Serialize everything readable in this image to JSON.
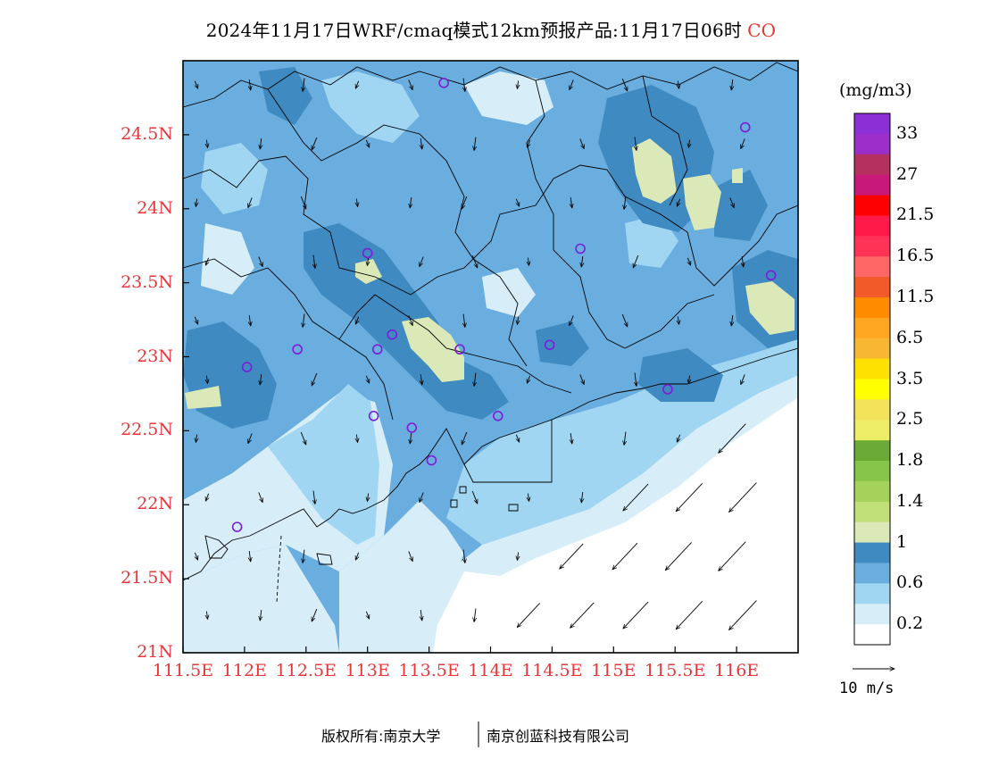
{
  "title": {
    "main": "2024年11月17日WRF/cmaq模式12km预报产品:11月17日06时",
    "species": "CO"
  },
  "axes": {
    "lat_labels": [
      "24.5N",
      "24N",
      "23.5N",
      "23N",
      "22.5N",
      "22N",
      "21.5N",
      "21N"
    ],
    "lat_values": [
      24.5,
      24.0,
      23.5,
      23.0,
      22.5,
      22.0,
      21.5,
      21.0
    ],
    "lon_labels": [
      "111.5E",
      "112E",
      "112.5E",
      "113E",
      "113.5E",
      "114E",
      "114.5E",
      "115E",
      "115.5E",
      "116E"
    ],
    "lon_values": [
      111.5,
      112.0,
      112.5,
      113.0,
      113.5,
      114.0,
      114.5,
      115.0,
      115.5,
      116.0
    ],
    "lat_range": [
      21.0,
      25.0
    ],
    "lon_range": [
      111.5,
      116.5
    ]
  },
  "colorbar": {
    "unit": "(mg/m3)",
    "labels": [
      "33",
      "27",
      "21.5",
      "16.5",
      "11.5",
      "6.5",
      "3.5",
      "2.5",
      "1.8",
      "1.4",
      "1",
      "0.6",
      "0.2"
    ],
    "colors_top_to_bottom": [
      "#8b2fd6",
      "#9b2ec8",
      "#b3305f",
      "#c8187a",
      "#ff0000",
      "#ff1a4a",
      "#ff3355",
      "#ff6666",
      "#f25a2a",
      "#ff8c00",
      "#ffa623",
      "#f7b733",
      "#ffe100",
      "#ffff00",
      "#f2e35a",
      "#eeee66",
      "#6aaa35",
      "#86c44a",
      "#a5d25a",
      "#c2e07a",
      "#dbe8b8",
      "#3f8ac0",
      "#6aaedf",
      "#a0d6f2",
      "#d7eef9",
      "#ffffff"
    ]
  },
  "wind_reference": {
    "label": "10 m/s"
  },
  "station_markers": [
    {
      "lon": 113.62,
      "lat": 24.85
    },
    {
      "lon": 116.07,
      "lat": 24.55
    },
    {
      "lon": 113.0,
      "lat": 23.7
    },
    {
      "lon": 114.73,
      "lat": 23.73
    },
    {
      "lon": 116.28,
      "lat": 23.55
    },
    {
      "lon": 112.43,
      "lat": 23.05
    },
    {
      "lon": 113.08,
      "lat": 23.05
    },
    {
      "lon": 113.2,
      "lat": 23.15
    },
    {
      "lon": 113.75,
      "lat": 23.05
    },
    {
      "lon": 114.48,
      "lat": 23.08
    },
    {
      "lon": 112.02,
      "lat": 22.93
    },
    {
      "lon": 115.44,
      "lat": 22.78
    },
    {
      "lon": 113.05,
      "lat": 22.6
    },
    {
      "lon": 113.36,
      "lat": 22.52
    },
    {
      "lon": 114.06,
      "lat": 22.6
    },
    {
      "lon": 113.52,
      "lat": 22.3
    },
    {
      "lon": 111.94,
      "lat": 21.85
    }
  ],
  "footer": {
    "left": "版权所有:南京大学",
    "right": "南京创蓝科技有限公司"
  }
}
